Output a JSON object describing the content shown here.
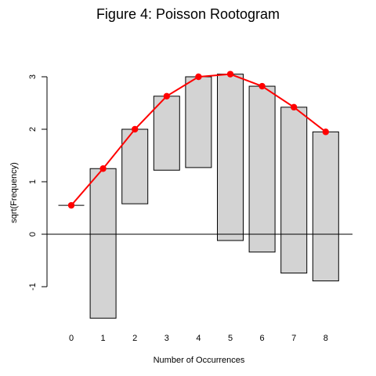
{
  "chart_data": {
    "type": "bar",
    "title": "Figure 4: Poisson Rootogram",
    "xlabel": "Number of Occurrences",
    "ylabel": "sqrt(Frequency)",
    "categories": [
      "0",
      "1",
      "2",
      "3",
      "4",
      "5",
      "6",
      "7",
      "8"
    ],
    "ylim": [
      -1.6,
      3.0
    ],
    "yticks": [
      -1,
      0,
      1,
      2,
      3
    ],
    "ytick_labels": [
      "-1",
      "0",
      "1",
      "2",
      "3"
    ],
    "series": [
      {
        "values_top": [
          0.55,
          1.25,
          2.0,
          2.63,
          3.0,
          3.05,
          2.82,
          2.42,
          1.95
        ],
        "values_bottom": [
          0.55,
          -1.6,
          0.58,
          1.22,
          1.27,
          -0.12,
          -0.34,
          -0.74,
          -0.89
        ]
      },
      {
        "values": [
          0.55,
          1.25,
          2.0,
          2.63,
          3.0,
          3.05,
          2.82,
          2.42,
          1.95
        ]
      }
    ],
    "reference_line_y": 0,
    "colors": {
      "bar_fill": "#d3d3d3",
      "bar_stroke": "#000000",
      "fit": "#ff0000"
    },
    "grid": false
  }
}
